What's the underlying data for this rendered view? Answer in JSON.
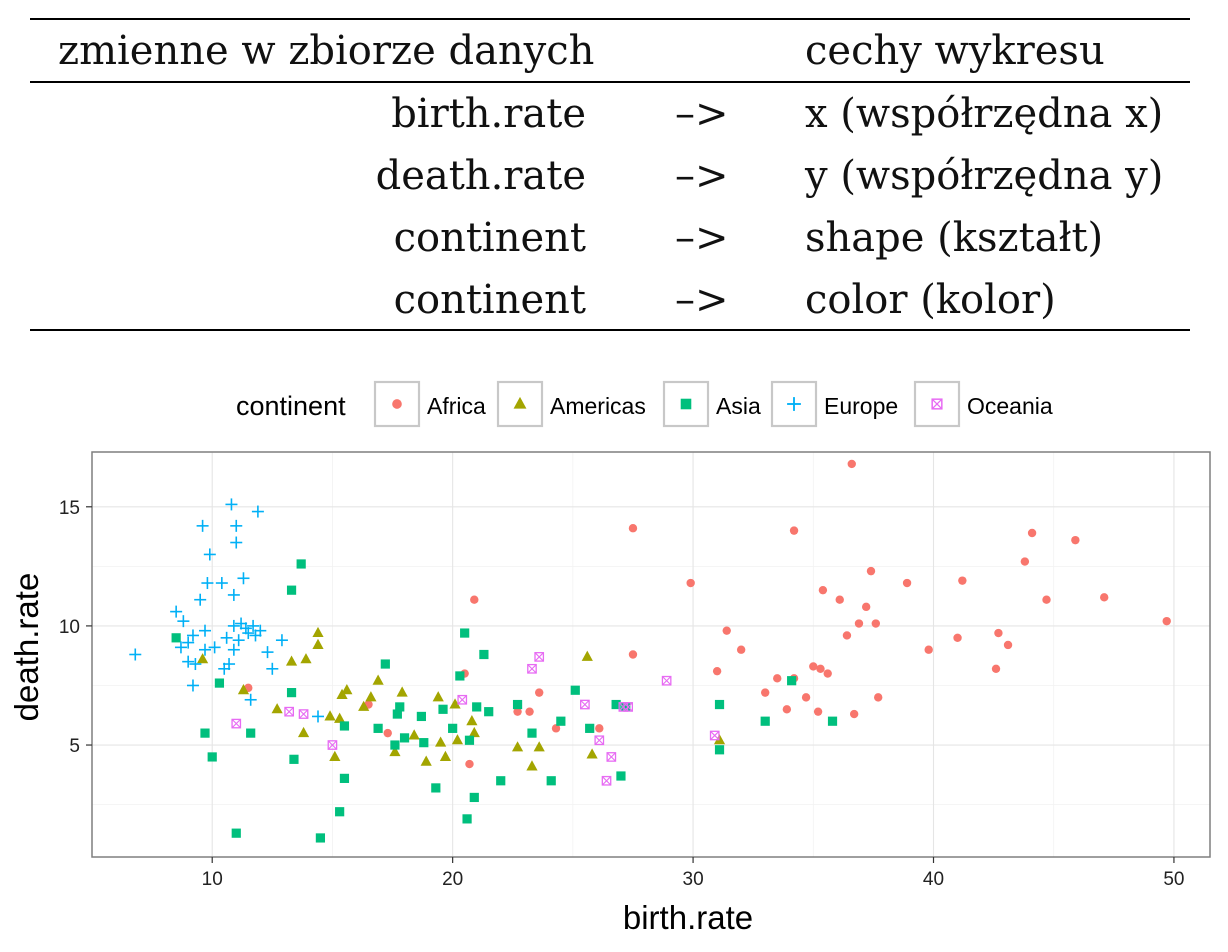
{
  "table": {
    "header": {
      "left": "zmienne w zbiorze danych",
      "right": "cechy wykresu"
    },
    "rows": [
      {
        "variable": "birth.rate",
        "arrow": "–>",
        "aesthetic": "x (współrzędna x)"
      },
      {
        "variable": "death.rate",
        "arrow": "–>",
        "aesthetic": "y (współrzędna y)"
      },
      {
        "variable": "continent",
        "arrow": "–>",
        "aesthetic": "shape (kształt)"
      },
      {
        "variable": "continent",
        "arrow": "–>",
        "aesthetic": "color (kolor)"
      }
    ]
  },
  "chart_data": {
    "type": "scatter",
    "xlabel": "birth.rate",
    "ylabel": "death.rate",
    "xlim": [
      5,
      51.5
    ],
    "ylim": [
      0.3,
      17.3
    ],
    "x_ticks": [
      10,
      20,
      30,
      40,
      50
    ],
    "y_ticks": [
      5,
      10,
      15
    ],
    "grid": true,
    "legend": {
      "title": "continent",
      "position": "top"
    },
    "series": [
      {
        "name": "Africa",
        "shape": "circle",
        "color": "#F8766D",
        "points": [
          [
            11.5,
            7.4
          ],
          [
            16.5,
            6.7
          ],
          [
            17.3,
            5.5
          ],
          [
            20.5,
            8.0
          ],
          [
            20.7,
            4.2
          ],
          [
            20.9,
            11.1
          ],
          [
            22.7,
            6.4
          ],
          [
            23.2,
            6.4
          ],
          [
            23.6,
            7.2
          ],
          [
            24.3,
            5.7
          ],
          [
            26.1,
            5.7
          ],
          [
            27.5,
            14.1
          ],
          [
            27.5,
            8.8
          ],
          [
            29.9,
            11.8
          ],
          [
            31.0,
            8.1
          ],
          [
            31.4,
            9.8
          ],
          [
            32.0,
            9.0
          ],
          [
            33.0,
            7.2
          ],
          [
            33.5,
            7.8
          ],
          [
            33.9,
            6.5
          ],
          [
            34.2,
            7.8
          ],
          [
            34.2,
            14.0
          ],
          [
            34.7,
            7.0
          ],
          [
            35.0,
            8.3
          ],
          [
            35.2,
            6.4
          ],
          [
            35.3,
            8.2
          ],
          [
            35.4,
            11.5
          ],
          [
            35.6,
            8.0
          ],
          [
            36.1,
            11.1
          ],
          [
            36.4,
            9.6
          ],
          [
            36.6,
            16.8
          ],
          [
            36.7,
            6.3
          ],
          [
            36.9,
            10.1
          ],
          [
            37.2,
            10.8
          ],
          [
            37.4,
            12.3
          ],
          [
            37.6,
            10.1
          ],
          [
            37.7,
            7.0
          ],
          [
            38.9,
            11.8
          ],
          [
            39.8,
            9.0
          ],
          [
            41.0,
            9.5
          ],
          [
            41.2,
            11.9
          ],
          [
            42.6,
            8.2
          ],
          [
            42.7,
            9.7
          ],
          [
            43.1,
            9.2
          ],
          [
            43.8,
            12.7
          ],
          [
            44.1,
            13.9
          ],
          [
            44.7,
            11.1
          ],
          [
            45.9,
            13.6
          ],
          [
            47.1,
            11.2
          ],
          [
            49.7,
            10.2
          ]
        ]
      },
      {
        "name": "Americas",
        "shape": "triangle",
        "color": "#A3A500",
        "points": [
          [
            9.6,
            8.6
          ],
          [
            11.3,
            7.3
          ],
          [
            12.7,
            6.5
          ],
          [
            13.3,
            8.5
          ],
          [
            13.8,
            5.5
          ],
          [
            13.9,
            8.6
          ],
          [
            14.4,
            9.7
          ],
          [
            14.4,
            9.2
          ],
          [
            14.9,
            6.2
          ],
          [
            15.1,
            4.5
          ],
          [
            15.3,
            6.1
          ],
          [
            15.4,
            7.1
          ],
          [
            15.6,
            7.3
          ],
          [
            16.3,
            6.6
          ],
          [
            16.6,
            7.0
          ],
          [
            16.9,
            7.7
          ],
          [
            17.6,
            4.7
          ],
          [
            17.9,
            7.2
          ],
          [
            18.4,
            5.4
          ],
          [
            18.9,
            4.3
          ],
          [
            19.4,
            7.0
          ],
          [
            19.5,
            5.1
          ],
          [
            19.7,
            4.5
          ],
          [
            20.1,
            6.7
          ],
          [
            20.2,
            5.2
          ],
          [
            20.8,
            6.0
          ],
          [
            20.9,
            5.5
          ],
          [
            22.7,
            4.9
          ],
          [
            23.3,
            4.1
          ],
          [
            23.6,
            4.9
          ],
          [
            25.6,
            8.7
          ],
          [
            25.8,
            4.6
          ],
          [
            31.1,
            5.2
          ]
        ]
      },
      {
        "name": "Asia",
        "shape": "square",
        "color": "#00BF7D",
        "points": [
          [
            8.5,
            9.5
          ],
          [
            9.7,
            5.5
          ],
          [
            10.0,
            4.5
          ],
          [
            10.3,
            7.6
          ],
          [
            11.0,
            1.3
          ],
          [
            11.6,
            5.5
          ],
          [
            13.3,
            11.5
          ],
          [
            13.3,
            7.2
          ],
          [
            13.4,
            4.4
          ],
          [
            13.7,
            12.6
          ],
          [
            14.5,
            1.1
          ],
          [
            15.3,
            2.2
          ],
          [
            15.5,
            3.6
          ],
          [
            15.5,
            5.8
          ],
          [
            16.9,
            5.7
          ],
          [
            17.2,
            8.4
          ],
          [
            17.6,
            5.0
          ],
          [
            17.7,
            6.3
          ],
          [
            17.8,
            6.6
          ],
          [
            18.0,
            5.3
          ],
          [
            18.7,
            6.2
          ],
          [
            18.8,
            5.1
          ],
          [
            19.3,
            3.2
          ],
          [
            19.6,
            6.5
          ],
          [
            20.0,
            5.7
          ],
          [
            20.3,
            7.9
          ],
          [
            20.5,
            9.7
          ],
          [
            20.6,
            1.9
          ],
          [
            20.7,
            5.2
          ],
          [
            20.9,
            2.8
          ],
          [
            21.0,
            6.6
          ],
          [
            21.3,
            8.8
          ],
          [
            21.5,
            6.4
          ],
          [
            22.0,
            3.5
          ],
          [
            22.7,
            6.7
          ],
          [
            23.3,
            5.5
          ],
          [
            24.1,
            3.5
          ],
          [
            24.5,
            6.0
          ],
          [
            25.1,
            7.3
          ],
          [
            25.7,
            5.7
          ],
          [
            26.8,
            6.7
          ],
          [
            27.0,
            3.7
          ],
          [
            27.2,
            6.6
          ],
          [
            31.1,
            6.7
          ],
          [
            31.1,
            4.8
          ],
          [
            33.0,
            6.0
          ],
          [
            34.1,
            7.7
          ],
          [
            35.8,
            6.0
          ]
        ]
      },
      {
        "name": "Europe",
        "shape": "plus",
        "color": "#00B0F6",
        "points": [
          [
            6.8,
            8.8
          ],
          [
            8.5,
            10.6
          ],
          [
            8.7,
            9.1
          ],
          [
            8.8,
            10.2
          ],
          [
            9.0,
            8.5
          ],
          [
            9.0,
            9.3
          ],
          [
            9.2,
            9.6
          ],
          [
            9.2,
            7.5
          ],
          [
            9.3,
            8.4
          ],
          [
            9.5,
            11.1
          ],
          [
            9.6,
            14.2
          ],
          [
            9.7,
            9.0
          ],
          [
            9.7,
            9.8
          ],
          [
            9.8,
            11.8
          ],
          [
            9.9,
            13.0
          ],
          [
            10.1,
            9.1
          ],
          [
            10.4,
            11.8
          ],
          [
            10.5,
            8.2
          ],
          [
            10.6,
            9.5
          ],
          [
            10.7,
            8.4
          ],
          [
            10.8,
            15.1
          ],
          [
            10.9,
            9.0
          ],
          [
            10.9,
            10.0
          ],
          [
            10.9,
            11.3
          ],
          [
            11.0,
            14.2
          ],
          [
            11.0,
            13.5
          ],
          [
            11.1,
            9.4
          ],
          [
            11.2,
            10.1
          ],
          [
            11.3,
            12.0
          ],
          [
            11.4,
            9.9
          ],
          [
            11.5,
            9.7
          ],
          [
            11.6,
            6.9
          ],
          [
            11.7,
            10.0
          ],
          [
            11.8,
            9.6
          ],
          [
            11.9,
            14.8
          ],
          [
            12.0,
            9.8
          ],
          [
            12.3,
            8.9
          ],
          [
            12.5,
            8.2
          ],
          [
            12.9,
            9.4
          ],
          [
            14.4,
            6.2
          ]
        ]
      },
      {
        "name": "Oceania",
        "shape": "square-x",
        "color": "#E76BF3",
        "points": [
          [
            11.0,
            5.9
          ],
          [
            13.2,
            6.4
          ],
          [
            13.8,
            6.3
          ],
          [
            15.0,
            5.0
          ],
          [
            20.4,
            6.9
          ],
          [
            23.3,
            8.2
          ],
          [
            23.6,
            8.7
          ],
          [
            25.5,
            6.7
          ],
          [
            26.1,
            5.2
          ],
          [
            26.4,
            3.5
          ],
          [
            26.6,
            4.5
          ],
          [
            27.1,
            6.6
          ],
          [
            27.3,
            6.6
          ],
          [
            28.9,
            7.7
          ],
          [
            30.9,
            5.4
          ]
        ]
      }
    ]
  }
}
